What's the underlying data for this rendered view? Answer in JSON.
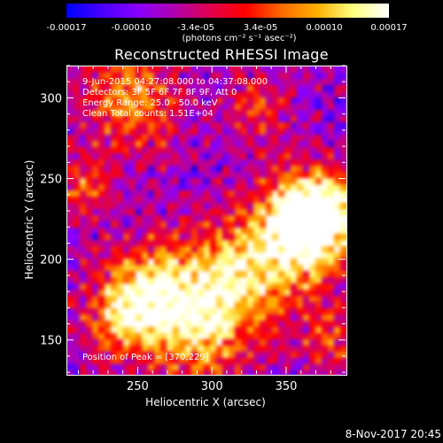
{
  "colorbar": {
    "tick_labels": [
      "-0.00017",
      "-0.00010",
      "-3.4e-05",
      "3.4e-05",
      "0.00010",
      "0.00017"
    ],
    "unit_label": "(photons cm⁻² s⁻¹ asec⁻²)",
    "colors": [
      "#0000ff",
      "#4a00ff",
      "#8a00ff",
      "#b000b0",
      "#e00050",
      "#ff0000",
      "#ff6a00",
      "#ffb000",
      "#ffff80",
      "#ffffff"
    ]
  },
  "chart_data": {
    "type": "heatmap",
    "title": "Reconstructed RHESSI Image",
    "xlabel": "Heliocentric X (arcsec)",
    "ylabel": "Heliocentric Y (arcsec)",
    "xlim": [
      202,
      390
    ],
    "ylim": [
      129,
      320
    ],
    "x_ticks": [
      250,
      300,
      350
    ],
    "x_tick_labels": [
      "250",
      "300",
      "350"
    ],
    "y_ticks": [
      150,
      200,
      250,
      300
    ],
    "y_tick_labels": [
      "150",
      "200",
      "250",
      "300"
    ],
    "color_range": [
      -0.00017,
      0.00017
    ],
    "peak_position": [
      370,
      229
    ]
  },
  "annotations": {
    "time_range": "9-Jun-2015 04:27:08.000 to 04:37:08.000",
    "detectors": "Detectors: 3F 5F 6F 7F 8F 9F, Att 0",
    "energy_range": "Energy Range: 25.0 - 50.0 keV",
    "clean_counts": "Clean    Total counts: 1.51E+04",
    "peak_label": "Position of Peak = [370,229]"
  },
  "footer": {
    "date": "8-Nov-2017 20:45"
  }
}
